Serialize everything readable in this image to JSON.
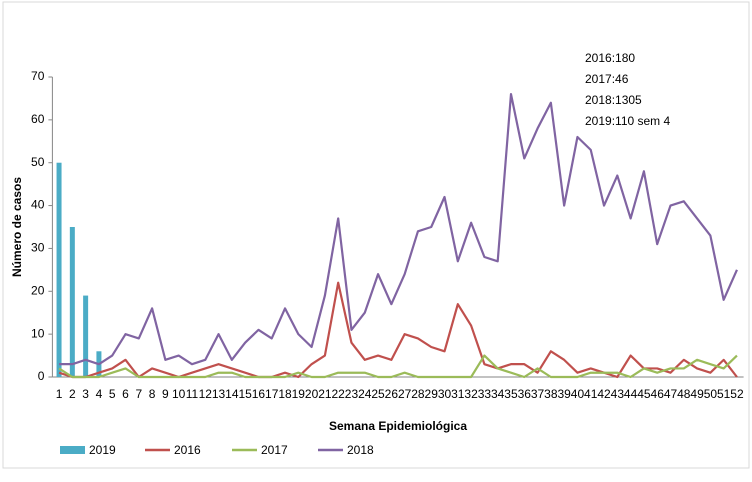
{
  "chart_data": {
    "type": "combo",
    "x_label": "Semana Epidemiológica",
    "y_label": "Número de casos",
    "annotations": [
      "2016:180",
      "2017:46",
      "2018:1305",
      "2019:110 sem 4"
    ],
    "categories": [
      "1",
      "2",
      "3",
      "4",
      "5",
      "6",
      "7",
      "8",
      "9",
      "10",
      "11",
      "12",
      "13",
      "14",
      "15",
      "16",
      "17",
      "18",
      "19",
      "20",
      "21",
      "22",
      "23",
      "24",
      "25",
      "26",
      "27",
      "28",
      "29",
      "30",
      "31",
      "32",
      "33",
      "34",
      "35",
      "36",
      "37",
      "38",
      "39",
      "40",
      "41",
      "42",
      "43",
      "44",
      "45",
      "46",
      "47",
      "48",
      "49",
      "50",
      "51",
      "52"
    ],
    "ylim": [
      0,
      70
    ],
    "yticks": [
      0,
      10,
      20,
      30,
      40,
      50,
      60,
      70
    ],
    "series": [
      {
        "name": "2019",
        "type": "bar",
        "color": "#4bacc6",
        "values": [
          50,
          35,
          19,
          6,
          null,
          null,
          null,
          null,
          null,
          null,
          null,
          null,
          null,
          null,
          null,
          null,
          null,
          null,
          null,
          null,
          null,
          null,
          null,
          null,
          null,
          null,
          null,
          null,
          null,
          null,
          null,
          null,
          null,
          null,
          null,
          null,
          null,
          null,
          null,
          null,
          null,
          null,
          null,
          null,
          null,
          null,
          null,
          null,
          null,
          null,
          null,
          null
        ]
      },
      {
        "name": "2016",
        "type": "line",
        "color": "#c0504d",
        "values": [
          1,
          0,
          0,
          1,
          2,
          4,
          0,
          2,
          1,
          0,
          1,
          2,
          3,
          2,
          1,
          0,
          0,
          1,
          0,
          3,
          5,
          22,
          8,
          4,
          5,
          4,
          10,
          9,
          7,
          6,
          17,
          12,
          3,
          2,
          3,
          3,
          1,
          6,
          4,
          1,
          2,
          1,
          0,
          5,
          2,
          2,
          1,
          4,
          2,
          1,
          4,
          0
        ]
      },
      {
        "name": "2017",
        "type": "line",
        "color": "#9bbb59",
        "values": [
          2,
          0,
          0,
          0,
          1,
          2,
          0,
          0,
          0,
          0,
          0,
          0,
          1,
          1,
          0,
          0,
          0,
          0,
          1,
          0,
          0,
          1,
          1,
          1,
          0,
          0,
          1,
          0,
          0,
          0,
          0,
          0,
          5,
          2,
          1,
          0,
          2,
          0,
          0,
          0,
          1,
          1,
          1,
          0,
          2,
          1,
          2,
          2,
          4,
          3,
          2,
          5
        ]
      },
      {
        "name": "2018",
        "type": "line",
        "color": "#8064a2",
        "values": [
          3,
          3,
          4,
          3,
          5,
          10,
          9,
          16,
          4,
          5,
          3,
          4,
          10,
          4,
          8,
          11,
          9,
          16,
          10,
          7,
          19,
          37,
          11,
          15,
          24,
          17,
          24,
          34,
          35,
          42,
          27,
          36,
          28,
          27,
          66,
          51,
          58,
          64,
          40,
          56,
          53,
          40,
          47,
          37,
          48,
          31,
          40,
          41,
          37,
          33,
          18,
          25
        ]
      }
    ]
  }
}
